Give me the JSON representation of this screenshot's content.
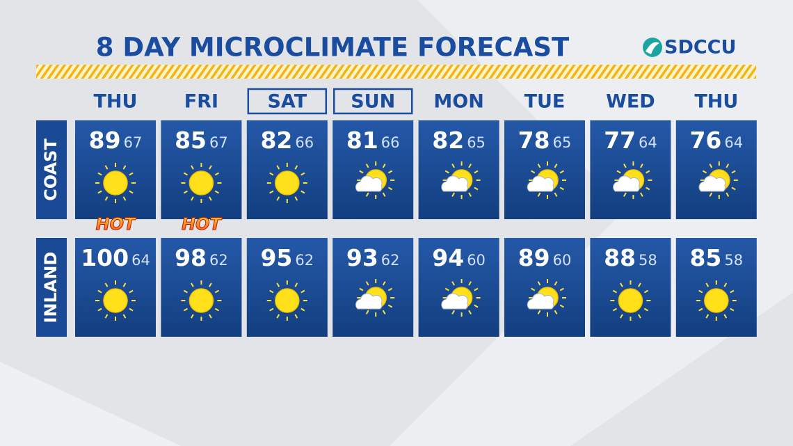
{
  "header": {
    "title": "8 DAY MICROCLIMATE FORECAST",
    "logo": "SDCCU"
  },
  "days": [
    "THU",
    "FRI",
    "SAT",
    "SUN",
    "MON",
    "TUE",
    "WED",
    "THU"
  ],
  "rows": [
    {
      "label": "COAST",
      "cells": [
        {
          "high": 89,
          "low": 67,
          "badge": "HOT"
        },
        {
          "high": 85,
          "low": 67,
          "badge": "HOT"
        },
        {
          "high": 82,
          "low": 66
        },
        {
          "high": 81,
          "low": 66
        },
        {
          "high": 82,
          "low": 65
        },
        {
          "high": 78,
          "low": 65
        },
        {
          "high": 77,
          "low": 64
        },
        {
          "high": 76,
          "low": 64
        }
      ]
    },
    {
      "label": "INLAND",
      "cells": [
        {
          "high": 100,
          "low": 64
        },
        {
          "high": 98,
          "low": 62
        },
        {
          "high": 95,
          "low": 62
        },
        {
          "high": 93,
          "low": 62
        },
        {
          "high": 94,
          "low": 60
        },
        {
          "high": 89,
          "low": 60
        },
        {
          "high": 88,
          "low": 58
        },
        {
          "high": 85,
          "low": 58
        }
      ]
    }
  ]
}
